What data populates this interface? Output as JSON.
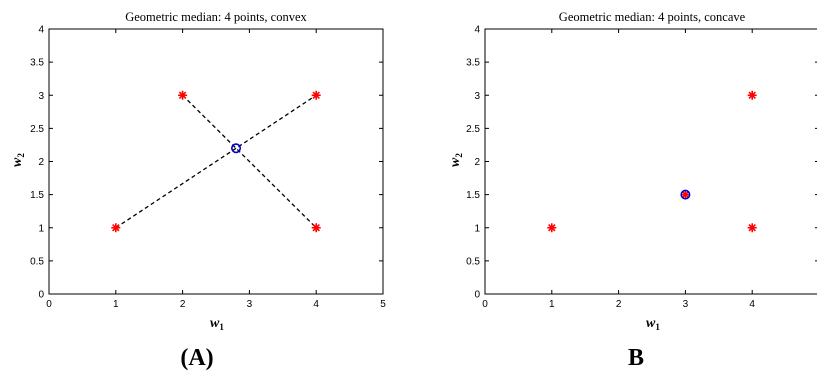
{
  "chart_data": [
    {
      "type": "scatter",
      "title": "Geometric median: 4 points, convex",
      "xlabel": "w",
      "xlabel_sub": "1",
      "ylabel": "w",
      "ylabel_sub": "2",
      "xlim": [
        0,
        5
      ],
      "ylim": [
        0,
        4
      ],
      "xticks": [
        "0",
        "1",
        "2",
        "3",
        "4",
        "5"
      ],
      "xtick_values": [
        0,
        1,
        2,
        3,
        4,
        5
      ],
      "yticks": [
        "0",
        "0.5",
        "1",
        "1.5",
        "2",
        "2.5",
        "3",
        "3.5",
        "4"
      ],
      "ytick_values": [
        0,
        0.5,
        1,
        1.5,
        2,
        2.5,
        3,
        3.5,
        4
      ],
      "grid": false,
      "panel_label": "(A)",
      "points": [
        {
          "x": 1,
          "y": 1
        },
        {
          "x": 2,
          "y": 3
        },
        {
          "x": 4,
          "y": 3
        },
        {
          "x": 4,
          "y": 1
        }
      ],
      "median": {
        "x": 2.8,
        "y": 2.2
      },
      "dashed_lines": [
        {
          "from": [
            1,
            1
          ],
          "to": [
            4,
            3
          ]
        },
        {
          "from": [
            2,
            3
          ],
          "to": [
            4,
            1
          ]
        }
      ],
      "colors": {
        "points": "#ff0000",
        "median": "#0000cc",
        "lines": "#000000"
      }
    },
    {
      "type": "scatter",
      "title": "Geometric median: 4 points, concave",
      "xlabel": "w",
      "xlabel_sub": "1",
      "ylabel": "w",
      "ylabel_sub": "2",
      "xlim": [
        0,
        5
      ],
      "ylim": [
        0,
        4
      ],
      "xticks": [
        "0",
        "1",
        "2",
        "3",
        "4"
      ],
      "xtick_values": [
        0,
        1,
        2,
        3,
        4
      ],
      "yticks": [
        "0",
        "0.5",
        "1",
        "1.5",
        "2",
        "2.5",
        "3",
        "3.5",
        "4"
      ],
      "ytick_values": [
        0,
        0.5,
        1,
        1.5,
        2,
        2.5,
        3,
        3.5,
        4
      ],
      "grid": false,
      "panel_label": "B",
      "points": [
        {
          "x": 1,
          "y": 1
        },
        {
          "x": 3,
          "y": 1.5
        },
        {
          "x": 4,
          "y": 3
        },
        {
          "x": 4,
          "y": 1
        }
      ],
      "median": {
        "x": 3,
        "y": 1.5
      },
      "dashed_lines": [],
      "colors": {
        "points": "#ff0000",
        "median": "#0000cc",
        "lines": "#000000"
      }
    }
  ]
}
